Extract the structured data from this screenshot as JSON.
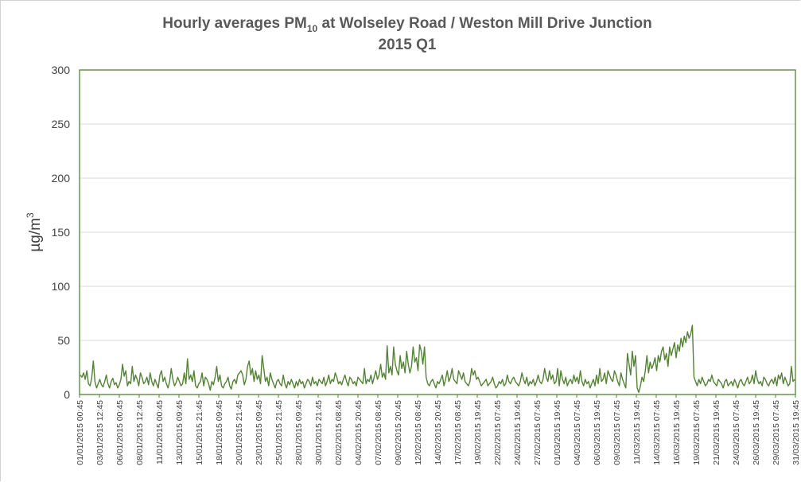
{
  "chart_data": {
    "type": "line",
    "title_main": "Hourly averages PM",
    "title_sub": "10",
    "title_rest": " at Wolseley Road / Weston Mill Drive Junction",
    "title_line2": "2015 Q1",
    "ylabel_base": "µg/m",
    "ylabel_sup": "3",
    "ylim": [
      0,
      300
    ],
    "yticks": [
      0,
      50,
      100,
      150,
      200,
      250,
      300
    ],
    "grid": true,
    "line_color": "#548235",
    "axis_color": "#548235",
    "xtick_labels": [
      "01/01/2015 00:45",
      "03/01/2015 12:45",
      "06/01/2015 00:45",
      "08/01/2015 12:45",
      "11/01/2015 00:45",
      "13/01/2015 09:45",
      "15/01/2015 21:45",
      "18/01/2015 09:45",
      "20/01/2015 21:45",
      "23/01/2015 09:45",
      "25/01/2015 21:45",
      "28/01/2015 09:45",
      "30/01/2015 21:45",
      "02/02/2015 08:45",
      "04/02/2015 20:45",
      "07/02/2015 08:45",
      "09/02/2015 20:45",
      "12/02/2015 08:45",
      "14/02/2015 20:45",
      "17/02/2015 08:45",
      "19/02/2015 19:45",
      "22/02/2015 07:45",
      "24/02/2015 19:45",
      "27/02/2015 07:45",
      "01/03/2015 19:45",
      "04/03/2015 07:45",
      "06/03/2015 19:45",
      "09/03/2015 07:45",
      "11/03/2015 19:45",
      "14/03/2015 07:45",
      "16/03/2015 19:45",
      "19/03/2015 07:45",
      "21/03/2015 19:45",
      "24/03/2015 07:45",
      "26/03/2015 19:45",
      "29/03/2015 07:45",
      "31/03/2015 19:45"
    ],
    "series": [
      {
        "values": [
          18,
          16,
          20,
          14,
          22,
          10,
          8,
          15,
          31,
          12,
          6,
          10,
          14,
          9,
          7,
          12,
          18,
          10,
          6,
          12,
          15,
          9,
          11,
          6,
          9,
          14,
          28,
          17,
          22,
          8,
          12,
          10,
          26,
          12,
          18,
          14,
          8,
          20,
          16,
          10,
          12,
          16,
          9,
          20,
          12,
          8,
          14,
          10,
          6,
          18,
          22,
          12,
          16,
          10,
          6,
          12,
          24,
          14,
          8,
          11,
          16,
          12,
          8,
          10,
          20,
          10,
          33,
          14,
          18,
          12,
          22,
          8,
          6,
          10,
          12,
          20,
          8,
          16,
          14,
          10,
          4,
          12,
          9,
          16,
          26,
          12,
          18,
          8,
          6,
          10,
          12,
          16,
          8,
          5,
          12,
          14,
          10,
          18,
          20,
          22,
          18,
          9,
          14,
          26,
          31,
          18,
          24,
          12,
          22,
          14,
          18,
          10,
          36,
          24,
          12,
          16,
          8,
          20,
          14,
          10,
          6,
          12,
          14,
          10,
          8,
          18,
          10,
          6,
          12,
          9,
          14,
          10,
          6,
          12,
          8,
          14,
          10,
          12,
          6,
          10,
          14,
          12,
          8,
          16,
          10,
          12,
          8,
          14,
          12,
          10,
          16,
          8,
          12,
          18,
          10,
          14,
          12,
          20,
          16,
          10,
          12,
          9,
          14,
          18,
          12,
          8,
          16,
          14,
          10,
          12,
          8,
          16,
          14,
          12,
          10,
          24,
          10,
          14,
          12,
          18,
          10,
          16,
          22,
          14,
          18,
          28,
          16,
          20,
          14,
          45,
          20,
          26,
          18,
          44,
          28,
          22,
          18,
          36,
          24,
          30,
          20,
          40,
          28,
          20,
          26,
          44,
          30,
          34,
          22,
          46,
          40,
          28,
          44,
          16,
          10,
          8,
          12,
          14,
          10,
          6,
          12,
          10,
          14,
          18,
          8,
          14,
          22,
          12,
          16,
          24,
          14,
          12,
          10,
          22,
          18,
          14,
          20,
          12,
          10,
          8,
          12,
          24,
          18,
          22,
          14,
          16,
          12,
          8,
          10,
          12,
          14,
          8,
          10,
          12,
          16,
          10,
          6,
          8,
          12,
          10,
          14,
          8,
          10,
          18,
          12,
          10,
          14,
          16,
          12,
          10,
          8,
          12,
          20,
          14,
          10,
          16,
          8,
          12,
          10,
          14,
          8,
          12,
          18,
          12,
          10,
          14,
          24,
          16,
          12,
          22,
          14,
          18,
          10,
          12,
          24,
          8,
          22,
          14,
          10,
          16,
          8,
          12,
          14,
          10,
          18,
          12,
          16,
          10,
          22,
          12,
          8,
          14,
          10,
          12,
          6,
          10,
          14,
          8,
          18,
          10,
          24,
          12,
          14,
          20,
          10,
          22,
          18,
          14,
          12,
          22,
          18,
          12,
          8,
          20,
          14,
          10,
          6,
          38,
          28,
          18,
          40,
          26,
          36,
          6,
          2,
          8,
          16,
          12,
          22,
          36,
          20,
          30,
          24,
          28,
          34,
          22,
          36,
          30,
          40,
          44,
          32,
          38,
          26,
          44,
          36,
          42,
          48,
          34,
          46,
          40,
          52,
          44,
          54,
          48,
          58,
          52,
          56,
          64,
          16,
          12,
          8,
          14,
          10,
          16,
          12,
          8,
          10,
          14,
          12,
          18,
          12,
          10,
          8,
          14,
          12,
          10,
          6,
          12,
          14,
          8,
          10,
          12,
          8,
          14,
          10,
          6,
          12,
          14,
          10,
          8,
          12,
          16,
          10,
          12,
          18,
          10,
          22,
          14,
          10,
          12,
          8,
          16,
          14,
          10,
          8,
          12,
          14,
          10,
          16,
          8,
          18,
          14,
          20,
          10,
          16,
          12,
          8,
          10,
          26,
          12,
          14
        ]
      }
    ]
  }
}
